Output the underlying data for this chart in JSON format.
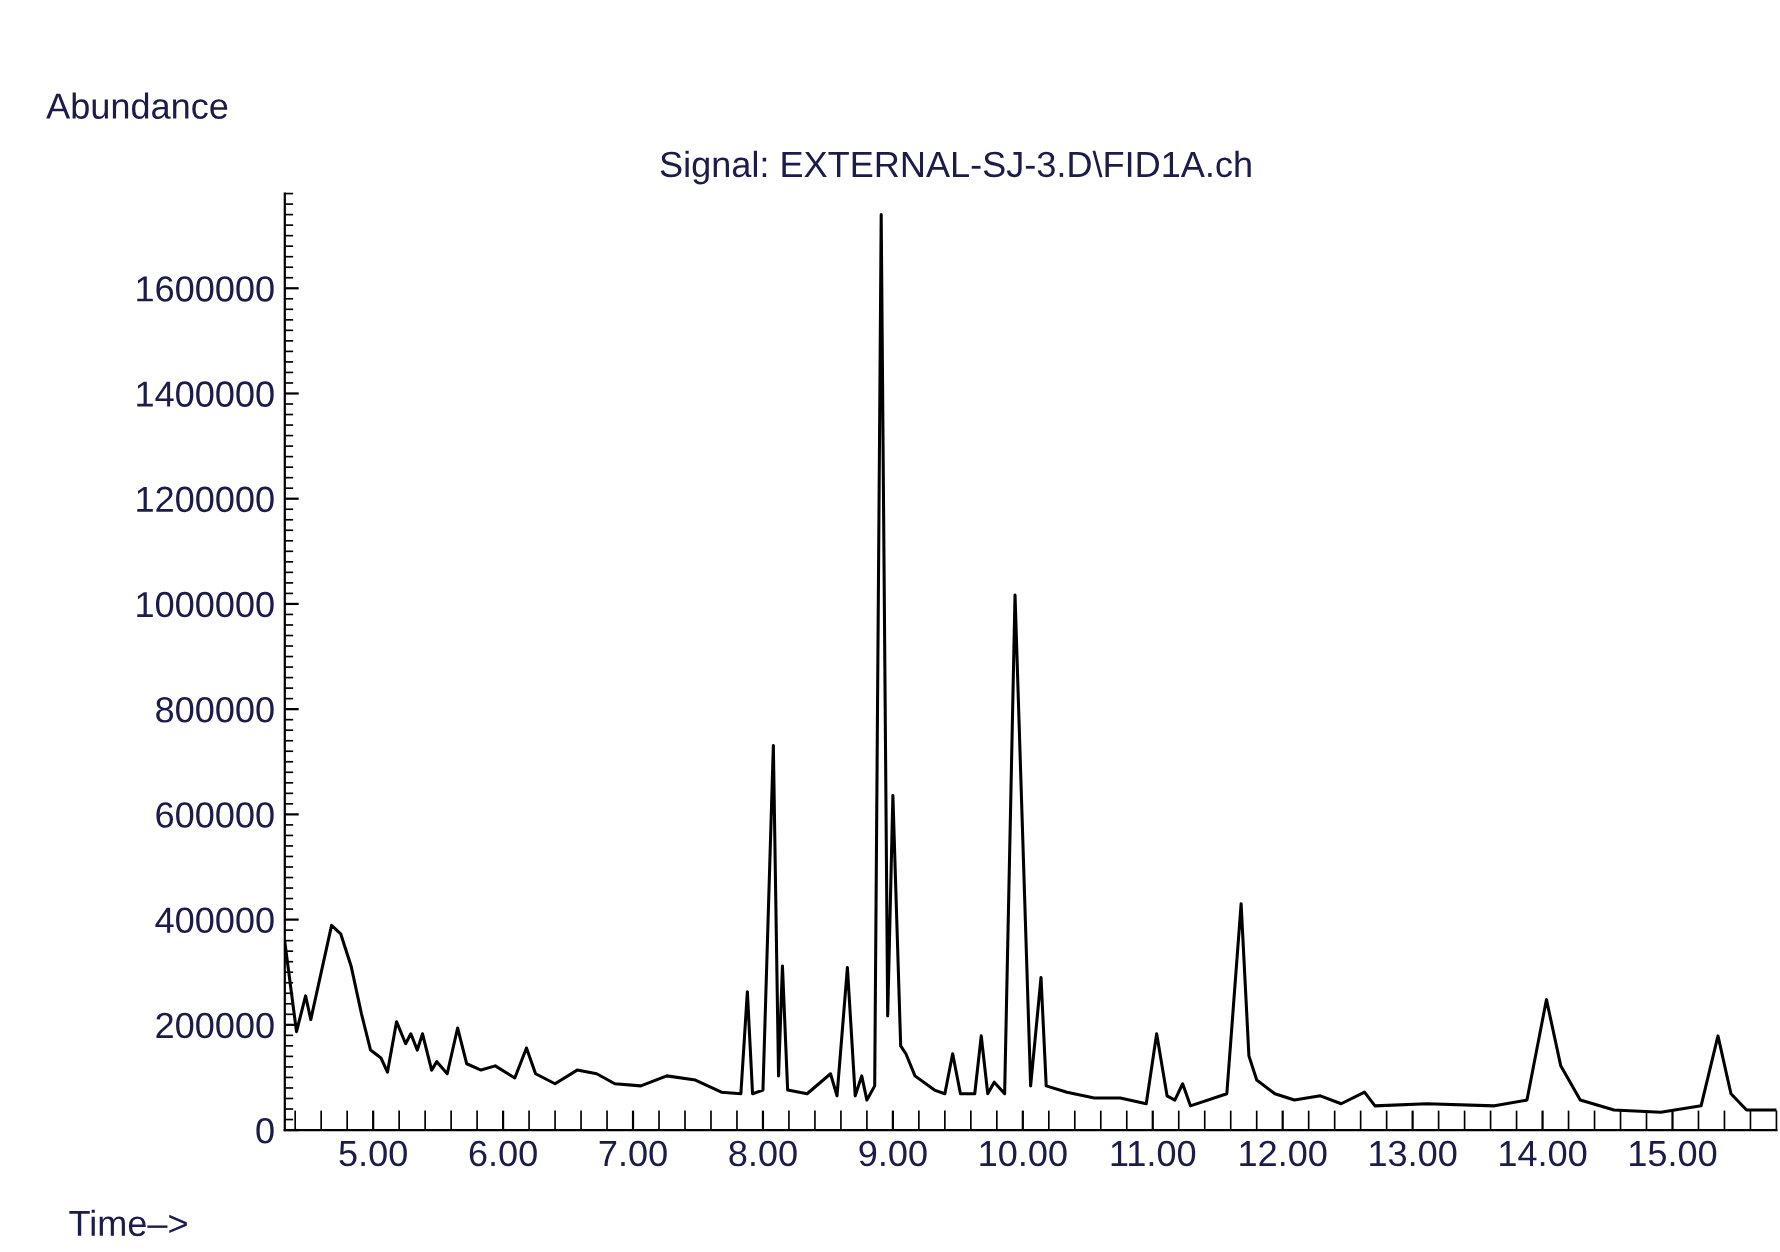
{
  "chart_data": {
    "type": "line",
    "title": "Signal: EXTERNAL-SJ-3.D\\FID1A.ch",
    "xlabel": "Time–>",
    "ylabel": "Abundance",
    "xlim": [
      4.32,
      15.8
    ],
    "ylim": [
      0,
      1780000
    ],
    "xticks": [
      {
        "value": 5,
        "label": "5.00"
      },
      {
        "value": 6,
        "label": "6.00"
      },
      {
        "value": 7,
        "label": "7.00"
      },
      {
        "value": 8,
        "label": "8.00"
      },
      {
        "value": 9,
        "label": "9.00"
      },
      {
        "value": 10,
        "label": "10.00"
      },
      {
        "value": 11,
        "label": "11.00"
      },
      {
        "value": 12,
        "label": "12.00"
      },
      {
        "value": 13,
        "label": "13.00"
      },
      {
        "value": 14,
        "label": "14.00"
      },
      {
        "value": 15,
        "label": "15.00"
      }
    ],
    "yticks": [
      0,
      200000,
      400000,
      600000,
      800000,
      1000000,
      1200000,
      1400000,
      1600000
    ],
    "grid": false,
    "legend": false,
    "marker": "none",
    "line_style": "solid",
    "series": [
      {
        "color": "#000000",
        "x": [
          4.32,
          4.41,
          4.48,
          4.52,
          4.68,
          4.75,
          4.83,
          4.91,
          4.98,
          5.06,
          5.11,
          5.18,
          5.25,
          5.29,
          5.34,
          5.38,
          5.45,
          5.49,
          5.57,
          5.65,
          5.72,
          5.83,
          5.94,
          6.09,
          6.18,
          6.25,
          6.4,
          6.57,
          6.72,
          6.86,
          7.06,
          7.26,
          7.48,
          7.68,
          7.83,
          7.88,
          7.92,
          8.0,
          8.08,
          8.12,
          8.15,
          8.19,
          8.34,
          8.52,
          8.57,
          8.65,
          8.71,
          8.76,
          8.8,
          8.86,
          8.91,
          8.96,
          9.0,
          9.06,
          9.1,
          9.17,
          9.32,
          9.4,
          9.46,
          9.52,
          9.63,
          9.68,
          9.73,
          9.78,
          9.86,
          9.94,
          10.06,
          10.14,
          10.18,
          10.34,
          10.55,
          10.75,
          10.95,
          11.03,
          11.11,
          11.17,
          11.23,
          11.29,
          11.57,
          11.68,
          11.74,
          11.8,
          11.94,
          12.09,
          12.29,
          12.45,
          12.63,
          12.71,
          13.11,
          13.63,
          13.88,
          14.03,
          14.14,
          14.29,
          14.55,
          14.91,
          15.22,
          15.35,
          15.45,
          15.57,
          15.8
        ],
        "values": [
          358000,
          187000,
          255000,
          210000,
          389000,
          373000,
          312000,
          221000,
          152000,
          137000,
          110000,
          206000,
          164000,
          183000,
          152000,
          183000,
          114000,
          130000,
          107000,
          194000,
          126000,
          114000,
          122000,
          99000,
          156000,
          107000,
          88000,
          114000,
          107000,
          88000,
          84000,
          103000,
          95000,
          72000,
          69000,
          263000,
          69000,
          76000,
          731000,
          103000,
          312000,
          76000,
          69000,
          107000,
          65000,
          309000,
          65000,
          103000,
          57000,
          84000,
          1740000,
          217000,
          636000,
          160000,
          145000,
          103000,
          76000,
          69000,
          145000,
          69000,
          69000,
          179000,
          69000,
          91000,
          69000,
          1017000,
          84000,
          290000,
          84000,
          72000,
          61000,
          61000,
          50000,
          183000,
          65000,
          57000,
          88000,
          46000,
          69000,
          430000,
          141000,
          95000,
          69000,
          57000,
          65000,
          50000,
          72000,
          46000,
          50000,
          46000,
          57000,
          248000,
          122000,
          57000,
          38000,
          34000,
          46000,
          179000,
          69000,
          38000,
          38000
        ]
      }
    ]
  }
}
